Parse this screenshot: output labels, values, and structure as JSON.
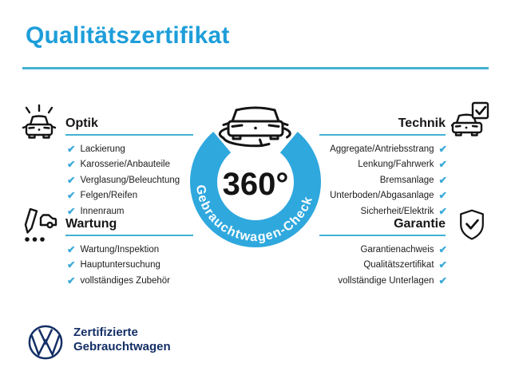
{
  "title": "Qualitätszertifikat",
  "checkmark": "✔",
  "colors": {
    "title_blue": "#1d9ed9",
    "rule_cyan": "#43b1d3",
    "ring_blue": "#2fa8de",
    "check_blue": "#3aa9da",
    "text_dark": "#1c1c1c",
    "vw_navy": "#142f66"
  },
  "center": {
    "degree_label": "360°",
    "ring_label": "Gebrauchtwagen-Check",
    "icon": "car-rotation-icon"
  },
  "sections": [
    {
      "id": "optik",
      "label": "Optik",
      "icon": "shiny-car-icon",
      "side": "left",
      "items": [
        "Lackierung",
        "Karosserie/Anbauteile",
        "Verglasung/Beleuchtung",
        "Felgen/Reifen",
        "Innenraum"
      ]
    },
    {
      "id": "technik",
      "label": "Technik",
      "icon": "car-checkbox-icon",
      "side": "right",
      "items": [
        "Aggregate/Antriebsstrang",
        "Lenkung/Fahrwerk",
        "Bremsanlage",
        "Unterboden/Abgasanlage",
        "Sicherheit/Elektrik"
      ]
    },
    {
      "id": "wartung",
      "label": "Wartung",
      "icon": "service-checklist-icon",
      "side": "left",
      "items": [
        "Wartung/Inspektion",
        "Hauptuntersuchung",
        "vollständiges Zubehör"
      ]
    },
    {
      "id": "garantie",
      "label": "Garantie",
      "icon": "shield-check-icon",
      "side": "right",
      "items": [
        "Garantienachweis",
        "Qualitätszertifikat",
        "vollständige Unterlagen"
      ]
    }
  ],
  "footer": {
    "logo": "vw-logo",
    "line1": "Zertifizierte",
    "line2": "Gebrauchtwagen"
  }
}
